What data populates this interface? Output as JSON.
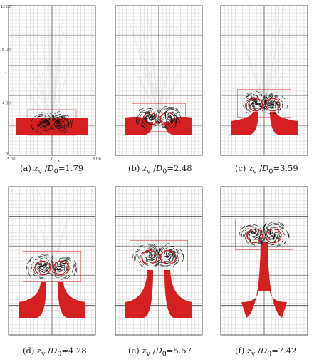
{
  "figure": {
    "panels": [
      {
        "letter": "(a)",
        "value": "1.79",
        "tick_labels": {
          "y_top": "12 D0",
          "y_mid": "8 D0",
          "y_low": "4 D0",
          "y_zero": "0",
          "x_left": "-3 D0",
          "x_mid": "0",
          "x_right": "3 D0",
          "x_label": "x",
          "y_label": "z"
        }
      },
      {
        "letter": "(b)",
        "value": "2.48"
      },
      {
        "letter": "(c)",
        "value": "3.59"
      },
      {
        "letter": "(d)",
        "value": "4.28"
      },
      {
        "letter": "(e)",
        "value": "5.57"
      },
      {
        "letter": "(f)",
        "value": "7.42"
      }
    ],
    "caption_var": "z",
    "caption_sub": "v",
    "caption_denom": "D",
    "caption_denom_sub": "0",
    "colors": {
      "vortex_fill": "#d42020",
      "grid": "#cfcfcf",
      "axis": "#333333",
      "velocity_vectors": "#111111"
    }
  }
}
